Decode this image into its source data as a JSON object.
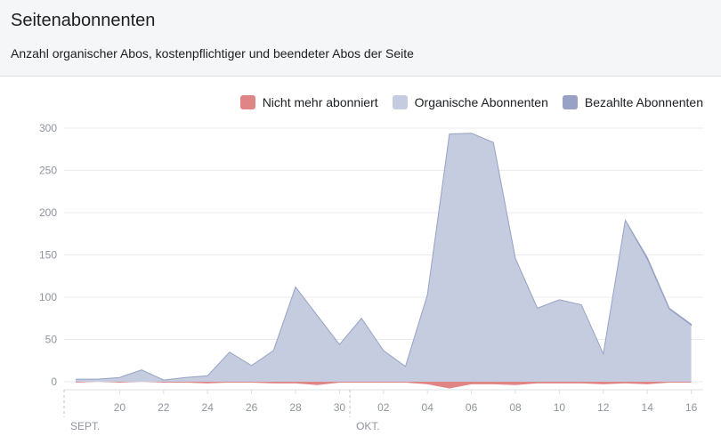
{
  "header": {
    "title": "Seitenabonnenten",
    "subtitle": "Anzahl organischer Abos, kostenpflichtiger und beendeter Abos der Seite"
  },
  "chart_data": {
    "type": "area",
    "ylim": [
      0,
      300
    ],
    "yticks": [
      0,
      50,
      100,
      150,
      200,
      250,
      300
    ],
    "x_ticks": [
      {
        "day": 2,
        "label": "20"
      },
      {
        "day": 4,
        "label": "22"
      },
      {
        "day": 6,
        "label": "24"
      },
      {
        "day": 8,
        "label": "26"
      },
      {
        "day": 10,
        "label": "28"
      },
      {
        "day": 12,
        "label": "30"
      },
      {
        "day": 14,
        "label": "02"
      },
      {
        "day": 16,
        "label": "04"
      },
      {
        "day": 18,
        "label": "06"
      },
      {
        "day": 20,
        "label": "08"
      },
      {
        "day": 22,
        "label": "10"
      },
      {
        "day": 24,
        "label": "12"
      },
      {
        "day": 26,
        "label": "14"
      },
      {
        "day": 28,
        "label": "16"
      }
    ],
    "months": [
      {
        "day": 0,
        "label": "SEPT."
      },
      {
        "day": 13,
        "label": "OKT."
      }
    ],
    "colors": {
      "unsubscribed": "#e08586",
      "organic": "#c5cce0",
      "paid": "#97a2c4"
    },
    "legend": [
      "Nicht mehr abonniert",
      "Organische Abonnenten",
      "Bezahlte Abonnenten"
    ],
    "series": [
      {
        "name": "Organische Abonnenten",
        "values": [
          3,
          3,
          5,
          14,
          2,
          5,
          7,
          35,
          19,
          37,
          112,
          78,
          44,
          75,
          37,
          18,
          103,
          293,
          294,
          283,
          146,
          87,
          97,
          91,
          33,
          191,
          145,
          86,
          67
        ]
      },
      {
        "name": "Bezahlte Abonnenten",
        "values": [
          0,
          0,
          0,
          0,
          0,
          0,
          0,
          0,
          0,
          0,
          0,
          0,
          0,
          0,
          0,
          0,
          0,
          0,
          0,
          0,
          0,
          0,
          0,
          0,
          0,
          0,
          2,
          1,
          1
        ]
      },
      {
        "name": "Nicht mehr abonniert",
        "values": [
          -1,
          0,
          -1,
          0,
          -1,
          -1,
          -2,
          -1,
          -1,
          -2,
          -2,
          -4,
          -1,
          -1,
          -1,
          -1,
          -3,
          -8,
          -3,
          -3,
          -4,
          -2,
          -2,
          -2,
          -3,
          -2,
          -3,
          -1,
          -1
        ]
      }
    ]
  }
}
